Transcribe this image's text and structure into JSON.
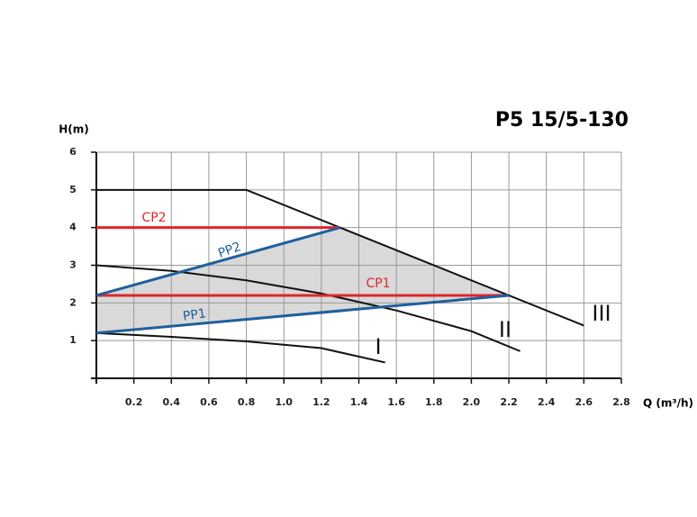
{
  "chart_data": {
    "type": "line",
    "title": "P5 15/5-130",
    "y_label": "H(m)",
    "x_label": "Q (m³/h)",
    "xlim": [
      0,
      2.8
    ],
    "ylim": [
      0,
      6
    ],
    "xticks": [
      0.2,
      0.4,
      0.6,
      0.8,
      {
        "value": 1,
        "label": "1.0"
      },
      1.2,
      1.4,
      1.6,
      1.8,
      {
        "value": 2,
        "label": "2.0"
      },
      2.2,
      2.4,
      2.6,
      2.8
    ],
    "yticks": [
      1,
      2,
      3,
      4,
      5,
      6
    ],
    "grid": true,
    "series": [
      {
        "name": "III",
        "color": "#111111",
        "x": [
          0,
          0.8,
          2.6
        ],
        "values": [
          5,
          5,
          1.4
        ]
      },
      {
        "name": "II",
        "color": "#111111",
        "x": [
          0,
          0.4,
          0.8,
          1.2,
          1.6,
          2.0,
          2.26
        ],
        "values": [
          3,
          2.85,
          2.6,
          2.25,
          1.8,
          1.25,
          0.72
        ]
      },
      {
        "name": "I",
        "color": "#111111",
        "x": [
          0,
          0.4,
          0.8,
          1.2,
          1.54
        ],
        "values": [
          1.2,
          1.1,
          0.98,
          0.8,
          0.42
        ]
      },
      {
        "name": "CP2",
        "color": "#e0262b",
        "x": [
          0,
          1.3
        ],
        "values": [
          4,
          4
        ]
      },
      {
        "name": "CP1",
        "color": "#e0262b",
        "x": [
          0,
          2.2
        ],
        "values": [
          2.2,
          2.2
        ]
      },
      {
        "name": "PP2",
        "color": "#1f5f9e",
        "x": [
          0,
          1.3
        ],
        "values": [
          2.2,
          4
        ]
      },
      {
        "name": "PP1",
        "color": "#1f5f9e",
        "x": [
          0,
          2.2
        ],
        "values": [
          1.2,
          2.2
        ]
      }
    ]
  }
}
